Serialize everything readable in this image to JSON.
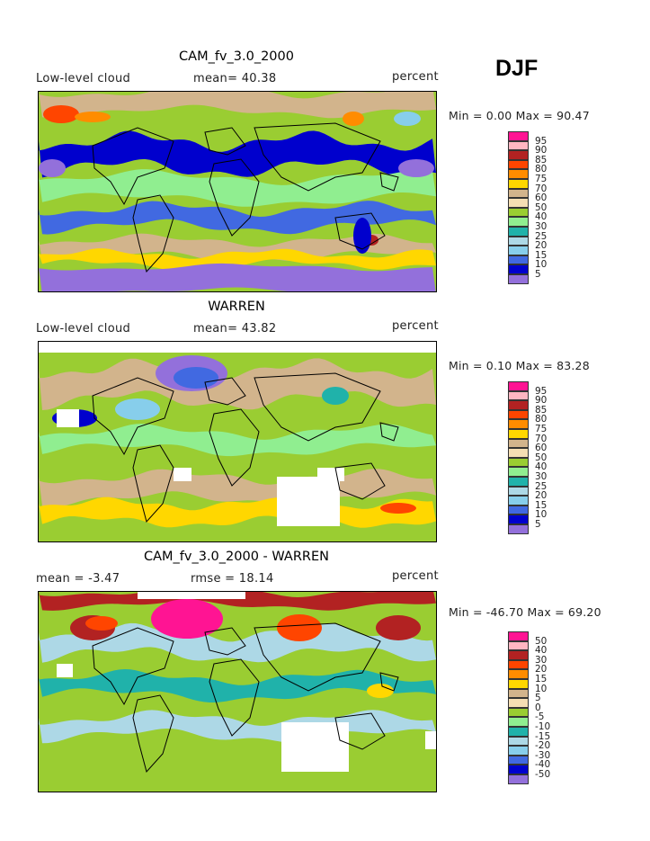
{
  "season": "DJF",
  "panels": [
    {
      "title": "CAM_fv_3.0_2000",
      "left_label": "Low-level cloud",
      "middle_label": "mean=  40.38",
      "right_label": "percent",
      "stats": "Min =   0.00 Max =  90.47",
      "legend_key": "abs"
    },
    {
      "title": "WARREN",
      "left_label": "Low-level cloud",
      "middle_label": "mean=  43.82",
      "right_label": "percent",
      "stats": "Min =   0.10 Max =  83.28",
      "legend_key": "abs"
    },
    {
      "title": "CAM_fv_3.0_2000 - WARREN",
      "left_label": "mean =   -3.47",
      "middle_label": "rmse =  18.14",
      "right_label": "percent",
      "stats": "Min = -46.70 Max =  69.20",
      "legend_key": "diff"
    }
  ],
  "legends": {
    "abs": {
      "ticks": [
        "95",
        "90",
        "85",
        "80",
        "75",
        "70",
        "60",
        "50",
        "40",
        "30",
        "25",
        "20",
        "15",
        "10",
        "5"
      ],
      "colors": [
        "#ff1493",
        "#ffb6c1",
        "#b22222",
        "#ff4500",
        "#ff8c00",
        "#ffd700",
        "#d2b48c",
        "#f5deb3",
        "#9acd32",
        "#90ee90",
        "#20b2aa",
        "#add8e6",
        "#87ceeb",
        "#4169e1",
        "#0000cd",
        "#9370db"
      ]
    },
    "diff": {
      "ticks": [
        "50",
        "40",
        "30",
        "20",
        "15",
        "10",
        "5",
        "0",
        "-5",
        "-10",
        "-15",
        "-20",
        "-30",
        "-40",
        "-50"
      ],
      "colors": [
        "#ff1493",
        "#ffb6c1",
        "#b22222",
        "#ff4500",
        "#ff8c00",
        "#ffd700",
        "#d2b48c",
        "#f5deb3",
        "#9acd32",
        "#90ee90",
        "#20b2aa",
        "#add8e6",
        "#87ceeb",
        "#4169e1",
        "#0000cd",
        "#9370db"
      ]
    }
  }
}
